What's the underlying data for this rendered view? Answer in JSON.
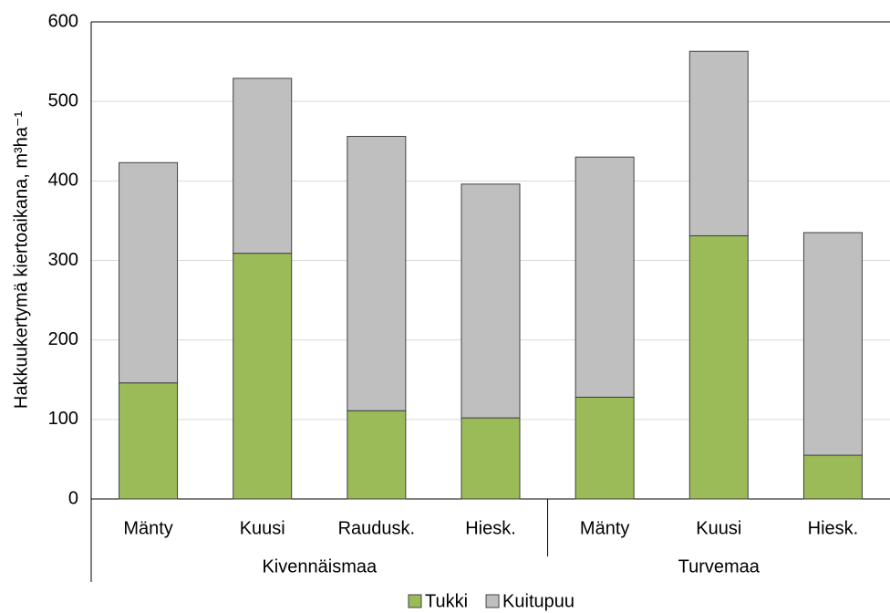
{
  "chart_data": {
    "type": "bar",
    "stacked": true,
    "ylabel": "Hakkuukertymä kiertoaikana, m³ha⁻¹",
    "groups": [
      {
        "name": "Kivennäismaa",
        "categories": [
          "Mänty",
          "Kuusi",
          "Raudusk.",
          "Hiesk."
        ]
      },
      {
        "name": "Turvemaa",
        "categories": [
          "Mänty",
          "Kuusi",
          "Hiesk."
        ]
      }
    ],
    "series": [
      {
        "name": "Tukki",
        "color": "#9bbb59",
        "values": [
          146,
          309,
          111,
          102,
          128,
          331,
          55
        ]
      },
      {
        "name": "Kuitupuu",
        "color": "#bfbfbf",
        "values": [
          277,
          220,
          345,
          294,
          302,
          232,
          280
        ]
      }
    ],
    "ylim": [
      0,
      600
    ],
    "yticks": [
      0,
      100,
      200,
      300,
      400,
      500,
      600
    ],
    "grid": true,
    "legend": "bottom"
  }
}
